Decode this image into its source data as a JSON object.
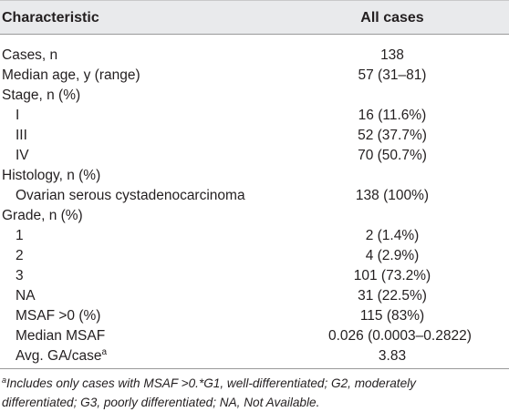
{
  "table": {
    "headers": [
      "Characteristic",
      "All cases"
    ],
    "rows": [
      {
        "label": "Cases, n",
        "value": "138"
      },
      {
        "label": "Median age, y (range)",
        "value": "57 (31–81)"
      },
      {
        "label": "Stage, n (%)",
        "value": ""
      },
      {
        "label": "I",
        "value": "16 (11.6%)"
      },
      {
        "label": "III",
        "value": "52 (37.7%)"
      },
      {
        "label": "IV",
        "value": "70 (50.7%)"
      },
      {
        "label": "Histology, n (%)",
        "value": ""
      },
      {
        "label": "Ovarian serous cystadenocarcinoma",
        "value": "138 (100%)"
      },
      {
        "label": "Grade, n (%)",
        "value": ""
      },
      {
        "label": "1",
        "value": "2 (1.4%)"
      },
      {
        "label": "2",
        "value": "4 (2.9%)"
      },
      {
        "label": "3",
        "value": "101 (73.2%)"
      },
      {
        "label": "NA",
        "value": "31 (22.5%)"
      },
      {
        "label": "MSAF >0 (%)",
        "value": "115 (83%)"
      },
      {
        "label": "Median MSAF",
        "value": "0.026 (0.0003–0.2822)"
      },
      {
        "label": "Avg. GA/case",
        "value": "3.83",
        "superscript": "a"
      }
    ]
  },
  "footnote": {
    "marker": "a",
    "line1": "Includes only cases with MSAF >0.*G1, well-differentiated; G2, moderately",
    "line2": "differentiated; G3, poorly differentiated; NA, Not Available."
  }
}
